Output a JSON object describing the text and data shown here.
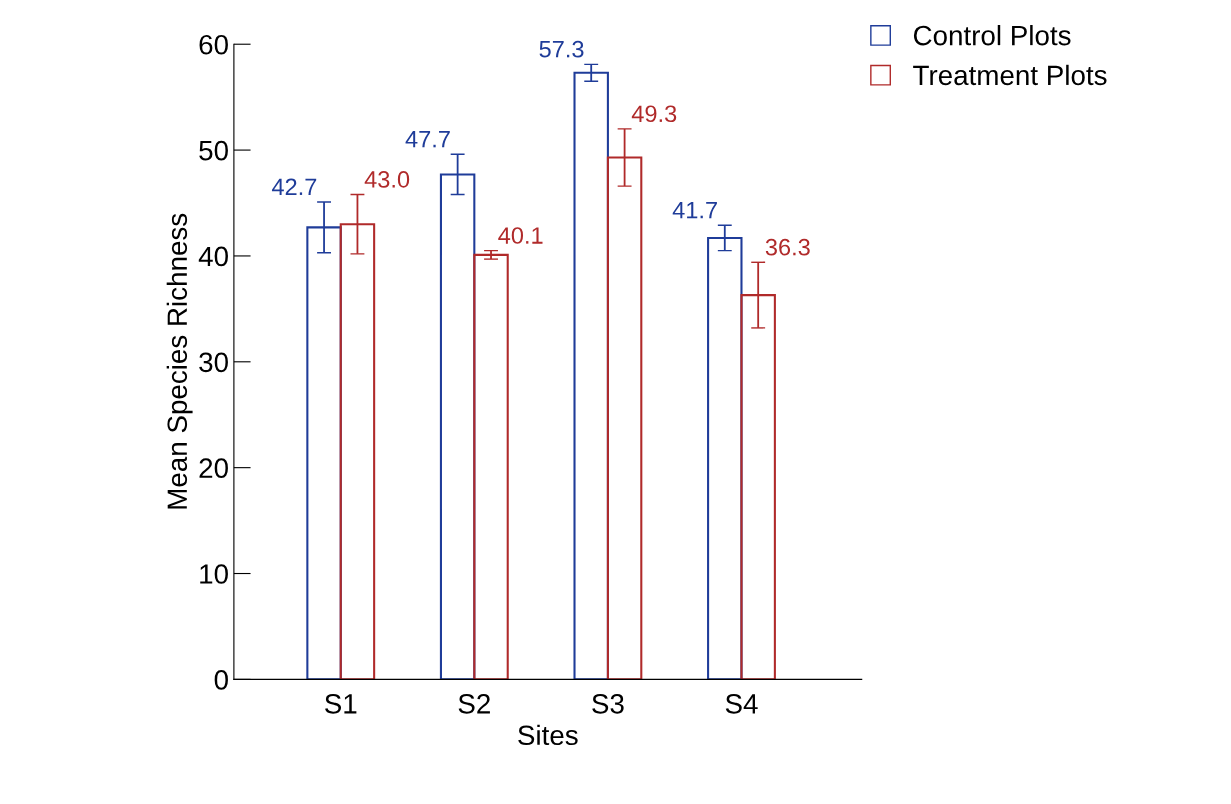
{
  "chart_data": {
    "type": "bar",
    "xlabel": "Sites",
    "ylabel": "Mean Species Richness",
    "categories": [
      "S1",
      "S2",
      "S3",
      "S4"
    ],
    "series": [
      {
        "name": "Control Plots",
        "color": "#1f3c99",
        "values": [
          42.7,
          47.7,
          57.3,
          41.7
        ],
        "value_labels": [
          "42.7",
          "47.7",
          "57.3",
          "41.7"
        ],
        "errors": [
          2.4,
          1.9,
          0.8,
          1.2
        ]
      },
      {
        "name": "Treatment Plots",
        "color": "#b02a2a",
        "values": [
          43.0,
          40.1,
          49.3,
          36.3
        ],
        "value_labels": [
          "43.0",
          "40.1",
          "49.3",
          "36.3"
        ],
        "errors": [
          2.8,
          0.4,
          2.7,
          3.1
        ]
      }
    ],
    "ylim": [
      0,
      60
    ],
    "yticks": [
      0,
      10,
      20,
      30,
      40,
      50,
      60
    ],
    "grid": false,
    "legend": "top right"
  }
}
